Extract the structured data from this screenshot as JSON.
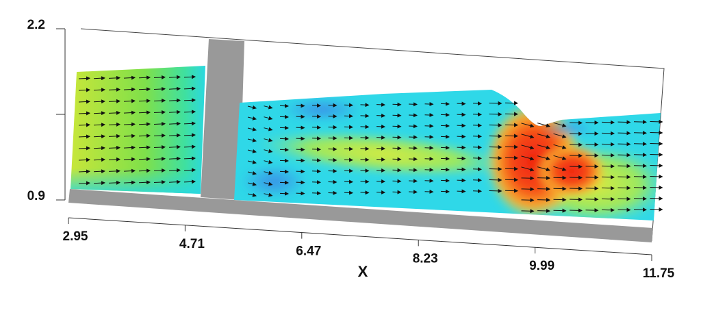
{
  "chart_data": {
    "type": "field",
    "x_label": "X",
    "xlim": [
      2.95,
      11.75
    ],
    "xticks": [
      2.95,
      4.71,
      6.47,
      8.23,
      9.99,
      11.75
    ],
    "ylim": [
      0.9,
      2.2
    ],
    "yticks": [
      0.9,
      2.2
    ]
  }
}
